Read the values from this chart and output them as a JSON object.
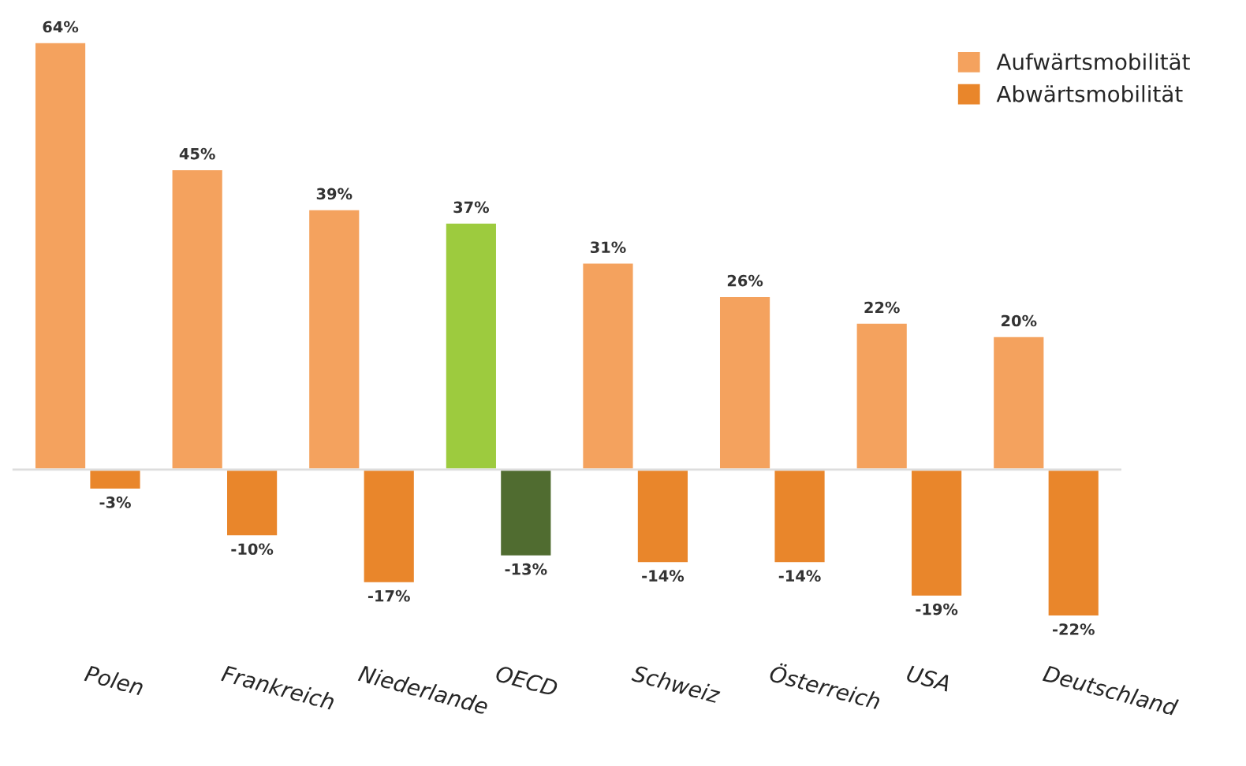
{
  "chart_data": {
    "type": "bar",
    "categories": [
      "Polen",
      "Frankreich",
      "Niederlande",
      "OECD",
      "Schweiz",
      "Österreich",
      "USA",
      "Deutschland"
    ],
    "series": [
      {
        "name": "Aufwärtsmobilität",
        "color": "#f4a25e",
        "colors": [
          "#f4a25e",
          "#f4a25e",
          "#f4a25e",
          "#9dcb3e",
          "#f4a25e",
          "#f4a25e",
          "#f4a25e",
          "#f4a25e"
        ],
        "values": [
          64,
          45,
          39,
          37,
          31,
          26,
          22,
          20
        ],
        "value_labels": [
          "64%",
          "45%",
          "39%",
          "37%",
          "31%",
          "26%",
          "22%",
          "20%"
        ]
      },
      {
        "name": "Abwärtsmobilität",
        "color": "#e9862b",
        "colors": [
          "#e9862b",
          "#e9862b",
          "#e9862b",
          "#506c30",
          "#e9862b",
          "#e9862b",
          "#e9862b",
          "#e9862b"
        ],
        "values": [
          -3,
          -10,
          -17,
          -13,
          -14,
          -14,
          -19,
          -22
        ],
        "value_labels": [
          "-3%",
          "-10%",
          "-17%",
          "-13%",
          "-14%",
          "-14%",
          "-19%",
          "-22%"
        ]
      }
    ],
    "tick_labels": "x",
    "legend": "top right"
  }
}
